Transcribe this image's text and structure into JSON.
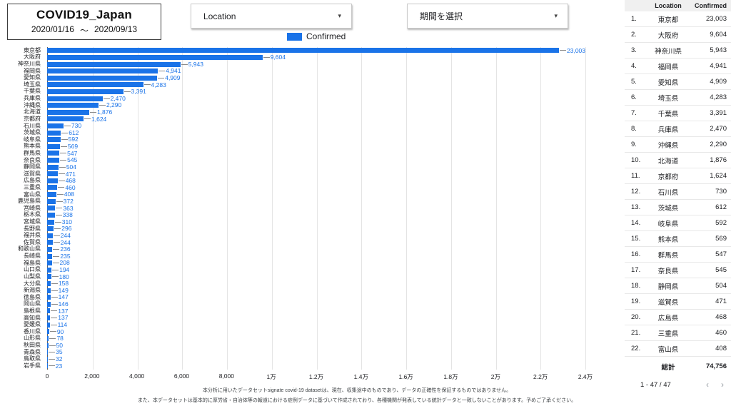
{
  "header": {
    "title": "COVID19_Japan",
    "date_start": "2020/01/16",
    "date_separator": "〜",
    "date_end": "2020/09/13",
    "location_dropdown_label": "Location",
    "period_dropdown_label": "期間を選択",
    "dropdown_caret": "▾",
    "legend_label": "Confirmed"
  },
  "colors": {
    "bar": "#1a73e8",
    "value_label": "#1a73e8",
    "legend_swatch": "#1a73e8"
  },
  "chart_data": {
    "type": "bar",
    "orientation": "horizontal",
    "title": "",
    "xlabel": "",
    "ylabel": "",
    "grid": true,
    "legend": [
      "Confirmed"
    ],
    "legend_position": "top",
    "xlim": [
      0,
      24000
    ],
    "x_ticks": [
      "0",
      "2,000",
      "4,000",
      "6,000",
      "8,000",
      "1万",
      "1.2万",
      "1.4万",
      "1.6万",
      "1.8万",
      "2万",
      "2.2万",
      "2.4万"
    ],
    "x_tick_values": [
      0,
      2000,
      4000,
      6000,
      8000,
      10000,
      12000,
      14000,
      16000,
      18000,
      20000,
      22000,
      24000
    ],
    "categories": [
      "東京都",
      "大阪府",
      "神奈川県",
      "福岡県",
      "愛知県",
      "埼玉県",
      "千葉県",
      "兵庫県",
      "沖縄県",
      "北海道",
      "京都府",
      "石川県",
      "茨城県",
      "岐阜県",
      "熊本県",
      "群馬県",
      "奈良県",
      "静岡県",
      "滋賀県",
      "広島県",
      "三重県",
      "富山県",
      "鹿児島県",
      "宮崎県",
      "栃木県",
      "宮城県",
      "長野県",
      "福井県",
      "佐賀県",
      "和歌山県",
      "長崎県",
      "福島県",
      "山口県",
      "山梨県",
      "大分県",
      "新潟県",
      "徳島県",
      "岡山県",
      "島根県",
      "高知県",
      "愛媛県",
      "香川県",
      "山形県",
      "秋田県",
      "青森県",
      "鳥取県",
      "岩手県"
    ],
    "values": [
      23003,
      9604,
      5943,
      4941,
      4909,
      4283,
      3391,
      2470,
      2290,
      1876,
      1624,
      730,
      612,
      592,
      569,
      547,
      545,
      504,
      471,
      468,
      460,
      408,
      372,
      363,
      338,
      310,
      296,
      244,
      244,
      236,
      235,
      208,
      194,
      180,
      158,
      149,
      147,
      146,
      137,
      137,
      114,
      90,
      78,
      50,
      35,
      32,
      23
    ],
    "value_labels": [
      "23,003",
      "9,604",
      "5,943",
      "4,941",
      "4,909",
      "4,283",
      "3,391",
      "2,470",
      "2,290",
      "1,876",
      "1,624",
      "730",
      "612",
      "592",
      "569",
      "547",
      "545",
      "504",
      "471",
      "468",
      "460",
      "408",
      "372",
      "363",
      "338",
      "310",
      "296",
      "244",
      "244",
      "236",
      "235",
      "208",
      "194",
      "180",
      "158",
      "149",
      "147",
      "146",
      "137",
      "137",
      "114",
      "90",
      "78",
      "50",
      "35",
      "32",
      "23"
    ]
  },
  "table": {
    "headers": [
      "Location",
      "Confirmed"
    ],
    "rows": [
      {
        "rank": "1.",
        "location": "東京都",
        "confirmed": "23,003"
      },
      {
        "rank": "2.",
        "location": "大阪府",
        "confirmed": "9,604"
      },
      {
        "rank": "3.",
        "location": "神奈川県",
        "confirmed": "5,943"
      },
      {
        "rank": "4.",
        "location": "福岡県",
        "confirmed": "4,941"
      },
      {
        "rank": "5.",
        "location": "愛知県",
        "confirmed": "4,909"
      },
      {
        "rank": "6.",
        "location": "埼玉県",
        "confirmed": "4,283"
      },
      {
        "rank": "7.",
        "location": "千葉県",
        "confirmed": "3,391"
      },
      {
        "rank": "8.",
        "location": "兵庫県",
        "confirmed": "2,470"
      },
      {
        "rank": "9.",
        "location": "沖縄県",
        "confirmed": "2,290"
      },
      {
        "rank": "10.",
        "location": "北海道",
        "confirmed": "1,876"
      },
      {
        "rank": "11.",
        "location": "京都府",
        "confirmed": "1,624"
      },
      {
        "rank": "12.",
        "location": "石川県",
        "confirmed": "730"
      },
      {
        "rank": "13.",
        "location": "茨城県",
        "confirmed": "612"
      },
      {
        "rank": "14.",
        "location": "岐阜県",
        "confirmed": "592"
      },
      {
        "rank": "15.",
        "location": "熊本県",
        "confirmed": "569"
      },
      {
        "rank": "16.",
        "location": "群馬県",
        "confirmed": "547"
      },
      {
        "rank": "17.",
        "location": "奈良県",
        "confirmed": "545"
      },
      {
        "rank": "18.",
        "location": "静岡県",
        "confirmed": "504"
      },
      {
        "rank": "19.",
        "location": "滋賀県",
        "confirmed": "471"
      },
      {
        "rank": "20.",
        "location": "広島県",
        "confirmed": "468"
      },
      {
        "rank": "21.",
        "location": "三重県",
        "confirmed": "460"
      },
      {
        "rank": "22.",
        "location": "富山県",
        "confirmed": "408"
      }
    ],
    "total_label": "総計",
    "total_value": "74,756",
    "pagination": "1 - 47 / 47",
    "prev_arrow": "‹",
    "next_arrow": "›"
  },
  "footer": {
    "line1": "本分析に用いたデータセットsignate covid-19 datasetは、現在、収集途中のものであり、データの正確性を保証するものではありません。",
    "line2": "また、本データセットは基本的に厚労省・自治体等の報道における症例データに基づいて作成されており、各種機関が発表している統計データと一致しないことがあります。予めご了承ください。"
  }
}
